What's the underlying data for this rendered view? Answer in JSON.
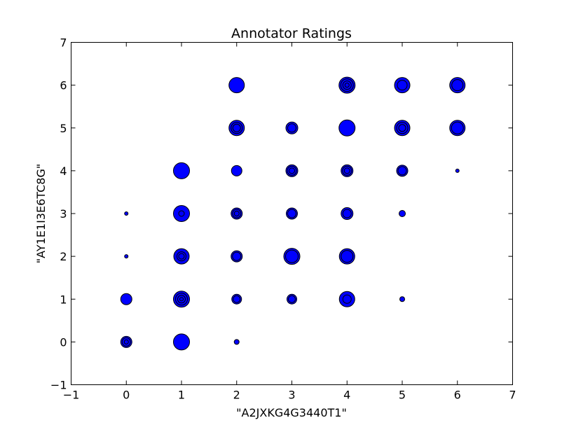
{
  "chart_data": {
    "type": "scatter",
    "title": "Annotator Ratings",
    "xlabel": "\"A2JXKG4G3440T1\"",
    "ylabel": "\"AY1E1I3E6TC8G\"",
    "xlim": [
      -1,
      7
    ],
    "ylim": [
      -1,
      7
    ],
    "xticks": [
      "−1",
      "0",
      "1",
      "2",
      "3",
      "4",
      "5",
      "6",
      "7"
    ],
    "yticks": [
      "−1",
      "0",
      "1",
      "2",
      "3",
      "4",
      "5",
      "6",
      "7"
    ],
    "grid": false,
    "marker_color": "#0000ff",
    "edge_color": "#000000",
    "points": [
      {
        "x": 0,
        "y": 0,
        "size": 8,
        "inner": [
          6,
          3
        ]
      },
      {
        "x": 0,
        "y": 1,
        "size": 8,
        "inner": []
      },
      {
        "x": 0,
        "y": 2,
        "size": 2.5,
        "inner": []
      },
      {
        "x": 0,
        "y": 3,
        "size": 2.5,
        "inner": []
      },
      {
        "x": 1,
        "y": 0,
        "size": 11.5,
        "inner": []
      },
      {
        "x": 1,
        "y": 1,
        "size": 11.5,
        "inner": [
          8.5,
          5.5,
          2.5
        ]
      },
      {
        "x": 1,
        "y": 2,
        "size": 11,
        "inner": [
          6.5,
          4
        ]
      },
      {
        "x": 1,
        "y": 3,
        "size": 11.5,
        "inner": [
          4
        ]
      },
      {
        "x": 1,
        "y": 4,
        "size": 11.5,
        "inner": []
      },
      {
        "x": 2,
        "y": 0,
        "size": 3.5,
        "inner": []
      },
      {
        "x": 2,
        "y": 1,
        "size": 7,
        "inner": [
          5
        ]
      },
      {
        "x": 2,
        "y": 2,
        "size": 8,
        "inner": [
          6
        ]
      },
      {
        "x": 2,
        "y": 3,
        "size": 8,
        "inner": [
          6,
          3.5
        ]
      },
      {
        "x": 2,
        "y": 4,
        "size": 7.5,
        "inner": []
      },
      {
        "x": 2,
        "y": 5,
        "size": 11,
        "inner": [
          8,
          5.5
        ]
      },
      {
        "x": 2,
        "y": 6,
        "size": 11,
        "inner": []
      },
      {
        "x": 3,
        "y": 1,
        "size": 7,
        "inner": [
          5
        ]
      },
      {
        "x": 3,
        "y": 2,
        "size": 11.5,
        "inner": [
          9
        ]
      },
      {
        "x": 3,
        "y": 3,
        "size": 8,
        "inner": [
          6
        ]
      },
      {
        "x": 3,
        "y": 4,
        "size": 8.5,
        "inner": [
          6.5,
          4
        ]
      },
      {
        "x": 3,
        "y": 5,
        "size": 8.5,
        "inner": [
          6
        ]
      },
      {
        "x": 4,
        "y": 1,
        "size": 11,
        "inner": [
          6
        ]
      },
      {
        "x": 4,
        "y": 2,
        "size": 11,
        "inner": [
          8.5
        ]
      },
      {
        "x": 4,
        "y": 3,
        "size": 8.5,
        "inner": [
          6
        ]
      },
      {
        "x": 4,
        "y": 4,
        "size": 8.5,
        "inner": [
          6.5,
          4
        ]
      },
      {
        "x": 4,
        "y": 5,
        "size": 11.5,
        "inner": []
      },
      {
        "x": 4,
        "y": 6,
        "size": 11.5,
        "inner": [
          9,
          6,
          3
        ]
      },
      {
        "x": 5,
        "y": 1,
        "size": 3.5,
        "inner": []
      },
      {
        "x": 5,
        "y": 3,
        "size": 4.5,
        "inner": []
      },
      {
        "x": 5,
        "y": 4,
        "size": 8,
        "inner": [
          6
        ]
      },
      {
        "x": 5,
        "y": 5,
        "size": 11,
        "inner": [
          8,
          5
        ]
      },
      {
        "x": 5,
        "y": 6,
        "size": 11,
        "inner": [
          7
        ]
      },
      {
        "x": 6,
        "y": 4,
        "size": 2.5,
        "inner": []
      },
      {
        "x": 6,
        "y": 5,
        "size": 11,
        "inner": [
          8.5
        ]
      },
      {
        "x": 6,
        "y": 6,
        "size": 11,
        "inner": [
          8
        ]
      }
    ]
  }
}
